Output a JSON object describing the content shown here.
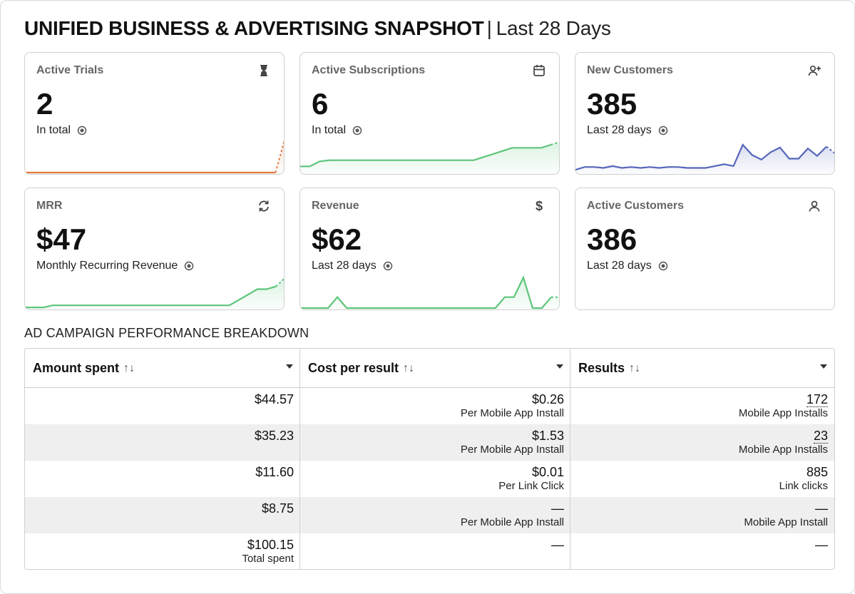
{
  "header": {
    "title": "UNIFIED BUSINESS & ADVERTISING SNAPSHOT",
    "separator": "|",
    "period": "Last 28 Days"
  },
  "cards": [
    {
      "label": "Active Trials",
      "value": "2",
      "sub": "In total",
      "icon": "hourglass-icon",
      "spark_color": "#e07b3f",
      "spark": [
        0,
        0,
        0,
        0,
        0,
        0,
        0,
        0,
        0,
        0,
        0,
        0,
        0,
        0,
        0,
        0,
        0,
        0,
        0,
        0,
        0,
        0,
        0,
        0,
        0,
        0,
        0,
        0.95
      ],
      "spark_max": 1
    },
    {
      "label": "Active Subscriptions",
      "value": "6",
      "sub": "In total",
      "icon": "calendar-icon",
      "spark_color": "#5cc57a",
      "spark": [
        1,
        1,
        1.8,
        2,
        2,
        2,
        2,
        2,
        2,
        2,
        2,
        2,
        2,
        2,
        2,
        2,
        2,
        2,
        2,
        2.5,
        3,
        3.5,
        4,
        4,
        4,
        4,
        4.5,
        5
      ],
      "spark_max": 6
    },
    {
      "label": "New Customers",
      "value": "385",
      "sub": "Last 28 days",
      "icon": "user-plus-icon",
      "spark_color": "#5566bb",
      "spark": [
        3,
        6,
        6,
        5,
        7,
        5,
        6,
        5,
        6,
        5,
        6,
        6,
        5,
        5,
        5,
        7,
        9,
        7,
        30,
        19,
        14,
        22,
        27,
        15,
        15,
        26,
        18,
        28,
        20
      ],
      "spark_max": 40
    },
    {
      "label": "MRR",
      "value": "$47",
      "sub": "Monthly Recurring Revenue",
      "icon": "refresh-arrows-icon",
      "spark_color": "#5cc57a",
      "spark": [
        1,
        1,
        1,
        4,
        4,
        4,
        4,
        4,
        4,
        4,
        4,
        4,
        4,
        4,
        4,
        4,
        4,
        4,
        4,
        4,
        4,
        4,
        4,
        12,
        20,
        28,
        28,
        32,
        45
      ],
      "spark_max": 55
    },
    {
      "label": "Revenue",
      "value": "$62",
      "sub": "Last 28 days",
      "icon": "dollar-icon",
      "spark_color": "#5cc57a",
      "spark": [
        0,
        0,
        0,
        0,
        10,
        0,
        0,
        0,
        0,
        0,
        0,
        0,
        0,
        0,
        0,
        0,
        0,
        0,
        0,
        0,
        0,
        0,
        10,
        10,
        28,
        0,
        0,
        10,
        10
      ],
      "spark_max": 34
    },
    {
      "label": "Active Customers",
      "value": "386",
      "sub": "Last 28 days",
      "icon": "user-icon",
      "spark_color": "",
      "spark": [],
      "spark_max": 1
    }
  ],
  "section": {
    "title": "AD CAMPAIGN PERFORMANCE BREAKDOWN"
  },
  "table": {
    "columns": [
      {
        "label": "Amount spent",
        "sort": "↑↓"
      },
      {
        "label": "Cost per result",
        "sort": "↑↓"
      },
      {
        "label": "Results",
        "sort": "↑↓"
      }
    ],
    "rows": [
      {
        "amount": "$44.57",
        "amount_sub": "",
        "cost": "$0.26",
        "cost_sub": "Per Mobile App Install",
        "result": "172",
        "result_sub": "Mobile App Installs",
        "dotted": true
      },
      {
        "amount": "$35.23",
        "amount_sub": "",
        "cost": "$1.53",
        "cost_sub": "Per Mobile App Install",
        "result": "23",
        "result_sub": "Mobile App Installs",
        "dotted": true
      },
      {
        "amount": "$11.60",
        "amount_sub": "",
        "cost": "$0.01",
        "cost_sub": "Per Link Click",
        "result": "885",
        "result_sub": "Link clicks",
        "dotted": false
      },
      {
        "amount": "$8.75",
        "amount_sub": "",
        "cost": "—",
        "cost_sub": "Per Mobile App Install",
        "result": "—",
        "result_sub": "Mobile App Install",
        "dotted": false
      },
      {
        "amount": "$100.15",
        "amount_sub": "Total spent",
        "cost": "—",
        "cost_sub": "",
        "result": "—",
        "result_sub": "",
        "dotted": false
      }
    ]
  }
}
